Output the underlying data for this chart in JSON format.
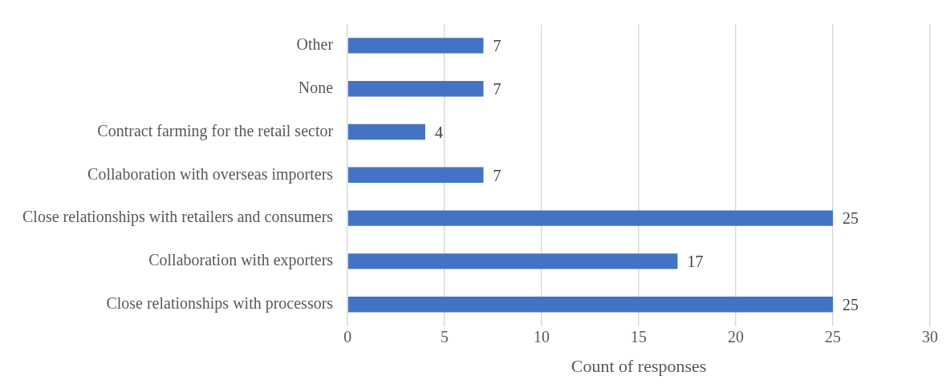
{
  "chart_data": {
    "type": "bar",
    "orientation": "horizontal",
    "xlabel": "Count of responses",
    "categories": [
      "Other",
      "None",
      "Contract farming for the retail sector",
      "Collaboration with overseas importers",
      "Close relationships with retailers and consumers",
      "Collaboration with exporters",
      "Close relationships with processors"
    ],
    "values": [
      7,
      7,
      4,
      7,
      25,
      17,
      25
    ],
    "color": "#4472c4",
    "xlim": [
      0,
      30
    ],
    "xticks": [
      0,
      5,
      10,
      15,
      20,
      25,
      30
    ],
    "grid": "x",
    "data_labels": true,
    "legend": false
  }
}
